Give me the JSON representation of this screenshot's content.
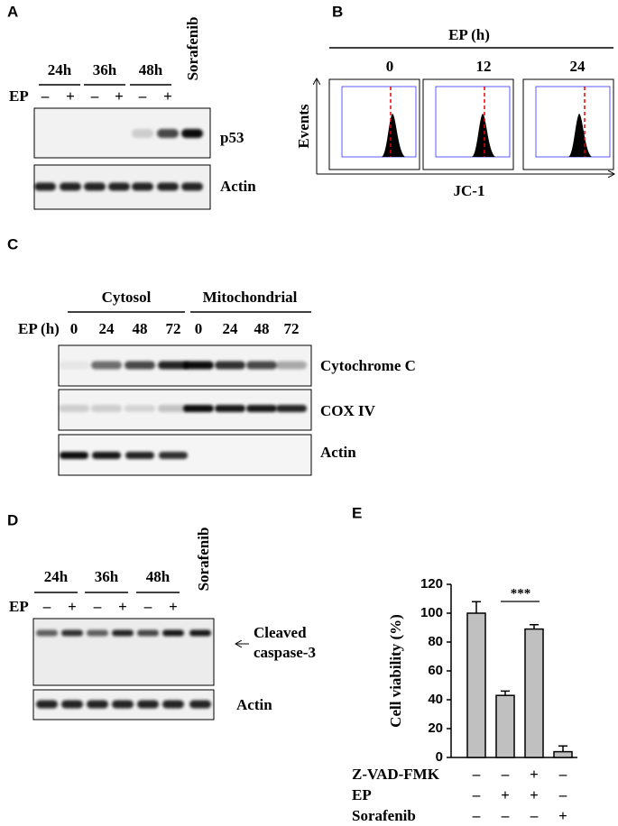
{
  "panels": {
    "a": {
      "label": "A",
      "times": [
        "24h",
        "36h",
        "48h"
      ],
      "sorafenib": "Sorafenib",
      "treatment": "EP",
      "signs": [
        "–",
        "+",
        "–",
        "+",
        "–",
        "+"
      ],
      "blots": [
        "p53",
        "Actin"
      ]
    },
    "b": {
      "label": "B",
      "title": "EP (h)",
      "times": [
        "0",
        "12",
        "24"
      ],
      "ylabel": "Events",
      "xlabel": "JC-1"
    },
    "c": {
      "label": "C",
      "groups": [
        "Cytosol",
        "Mitochondrial"
      ],
      "treatment": "EP (h)",
      "times": [
        "0",
        "24",
        "48",
        "72",
        "0",
        "24",
        "48",
        "72"
      ],
      "blots": [
        "Cytochrome C",
        "COX IV",
        "Actin"
      ]
    },
    "d": {
      "label": "D",
      "times": [
        "24h",
        "36h",
        "48h"
      ],
      "sorafenib": "Sorafenib",
      "treatment": "EP",
      "signs": [
        "–",
        "+",
        "–",
        "+",
        "–",
        "+"
      ],
      "blots": [
        "Cleaved",
        "caspase-3",
        "Actin"
      ]
    },
    "e": {
      "label": "E"
    }
  },
  "chart_data": {
    "type": "bar",
    "ylabel": "Cell viability (%)",
    "values": [
      100,
      43,
      89,
      4
    ],
    "errors": [
      8,
      3,
      3,
      4
    ],
    "ylim": [
      0,
      120
    ],
    "yticks": [
      0,
      20,
      40,
      60,
      80,
      100,
      120
    ],
    "color": "#c0c0c0",
    "annotation": "***",
    "conditions": [
      {
        "name": "Z-VAD-FMK",
        "signs": [
          "–",
          "–",
          "+",
          "–"
        ]
      },
      {
        "name": "EP",
        "signs": [
          "–",
          "+",
          "+",
          "–"
        ]
      },
      {
        "name": "Sorafenib",
        "signs": [
          "–",
          "–",
          "–",
          "+"
        ]
      }
    ]
  }
}
